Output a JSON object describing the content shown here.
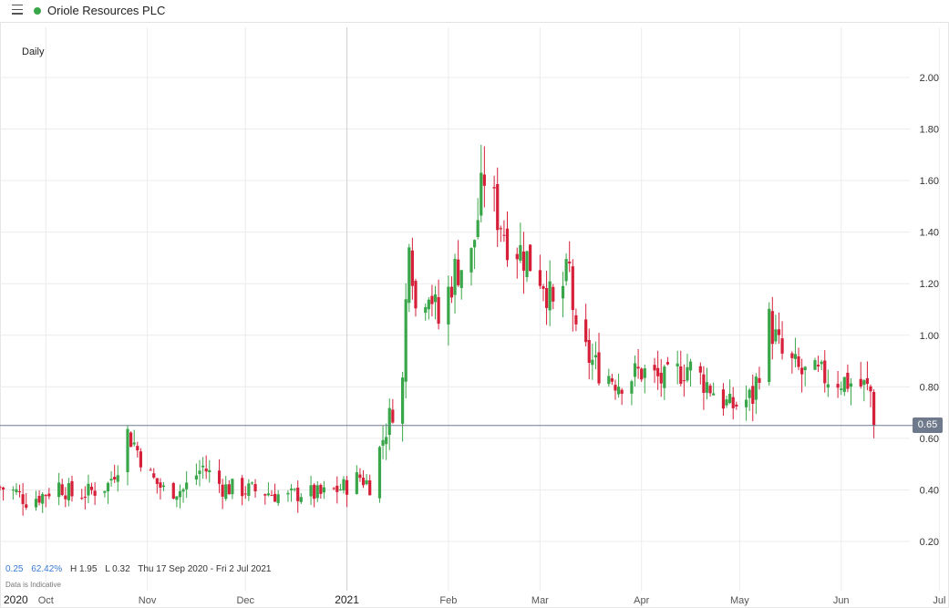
{
  "header": {
    "title": "Oriole Resources PLC",
    "status_color": "#3aa64a"
  },
  "period": "Daily",
  "current_price": "0.65",
  "info": {
    "change": "0.25",
    "change_pct": "62.42%",
    "high": "H 1.95",
    "low": "L 0.32",
    "range": "Thu 17 Sep 2020 - Fri 2 Jul 2021"
  },
  "disclaimer": "Data is Indicative",
  "colors": {
    "up": "#3aa64a",
    "down": "#d6203a",
    "grid": "#ececec",
    "price_line": "#6e7a8c"
  },
  "chart_data": {
    "type": "candlestick",
    "title": "Oriole Resources PLC",
    "interval": "Daily",
    "y_ticks": [
      "2.00",
      "1.80",
      "1.60",
      "1.40",
      "1.20",
      "1.00",
      "0.80",
      "0.60",
      "0.40",
      "0.20"
    ],
    "ylim": [
      0.0,
      2.2
    ],
    "x_labels": [
      {
        "label": "2020",
        "date": "2020-09-17"
      },
      {
        "label": "Oct",
        "date": "2020-10-01"
      },
      {
        "label": "Nov",
        "date": "2020-11-01"
      },
      {
        "label": "Dec",
        "date": "2020-12-01"
      },
      {
        "label": "2021",
        "date": "2021-01-01"
      },
      {
        "label": "Feb",
        "date": "2021-02-01"
      },
      {
        "label": "Mar",
        "date": "2021-03-01"
      },
      {
        "label": "Apr",
        "date": "2021-04-01"
      },
      {
        "label": "May",
        "date": "2021-05-01"
      },
      {
        "label": "Jun",
        "date": "2021-06-01"
      },
      {
        "label": "Jul",
        "date": "2021-07-01"
      }
    ],
    "xlim": [
      "2020-09-17",
      "2021-07-02"
    ],
    "last_price": 0.65,
    "high": 1.95,
    "low": 0.32,
    "ohlc_daily_close_approx": [
      [
        "2020-09-17",
        0.41
      ],
      [
        "2020-09-22",
        0.39
      ],
      [
        "2020-09-25",
        0.36
      ],
      [
        "2020-09-30",
        0.38
      ],
      [
        "2020-10-05",
        0.42
      ],
      [
        "2020-10-09",
        0.38
      ],
      [
        "2020-10-14",
        0.39
      ],
      [
        "2020-10-20",
        0.42
      ],
      [
        "2020-10-23",
        0.5
      ],
      [
        "2020-10-26",
        0.62
      ],
      [
        "2020-10-28",
        0.58
      ],
      [
        "2020-11-02",
        0.45
      ],
      [
        "2020-11-06",
        0.4
      ],
      [
        "2020-11-12",
        0.4
      ],
      [
        "2020-11-18",
        0.49
      ],
      [
        "2020-11-24",
        0.41
      ],
      [
        "2020-12-01",
        0.4
      ],
      [
        "2020-12-08",
        0.39
      ],
      [
        "2020-12-14",
        0.37
      ],
      [
        "2020-12-18",
        0.39
      ],
      [
        "2020-12-24",
        0.38
      ],
      [
        "2020-12-31",
        0.41
      ],
      [
        "2021-01-05",
        0.45
      ],
      [
        "2021-01-08",
        0.42
      ],
      [
        "2021-01-12",
        0.6
      ],
      [
        "2021-01-14",
        0.68
      ],
      [
        "2021-01-18",
        0.82
      ],
      [
        "2021-01-20",
        1.43
      ],
      [
        "2021-01-22",
        1.1
      ],
      [
        "2021-01-26",
        1.2
      ],
      [
        "2021-01-29",
        1.05
      ],
      [
        "2021-02-03",
        1.25
      ],
      [
        "2021-02-08",
        1.3
      ],
      [
        "2021-02-12",
        1.62
      ],
      [
        "2021-02-15",
        1.5
      ],
      [
        "2021-02-19",
        1.38
      ],
      [
        "2021-02-25",
        1.3
      ],
      [
        "2021-03-02",
        1.22
      ],
      [
        "2021-03-05",
        1.1
      ],
      [
        "2021-03-10",
        1.25
      ],
      [
        "2021-03-12",
        0.98
      ],
      [
        "2021-03-18",
        0.88
      ],
      [
        "2021-03-25",
        0.82
      ],
      [
        "2021-04-01",
        0.86
      ],
      [
        "2021-04-08",
        0.82
      ],
      [
        "2021-04-15",
        0.88
      ],
      [
        "2021-04-22",
        0.8
      ],
      [
        "2021-04-28",
        0.72
      ],
      [
        "2021-05-05",
        0.76
      ],
      [
        "2021-05-10",
        1.05
      ],
      [
        "2021-05-14",
        0.92
      ],
      [
        "2021-05-20",
        0.85
      ],
      [
        "2021-05-27",
        0.84
      ],
      [
        "2021-06-03",
        0.82
      ],
      [
        "2021-06-08",
        0.8
      ],
      [
        "2021-06-10",
        0.78
      ],
      [
        "2021-06-11",
        0.65
      ]
    ]
  }
}
